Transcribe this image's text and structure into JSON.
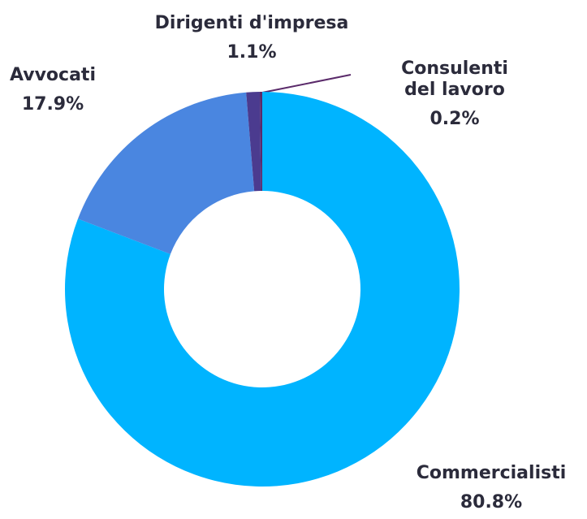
{
  "chart_data": {
    "type": "donut",
    "categories": [
      "Commercialisti",
      "Avvocati",
      "Dirigenti d'impresa",
      "Consulenti del lavoro"
    ],
    "values": [
      80.8,
      17.9,
      1.1,
      0.2
    ],
    "value_labels": [
      "80.8%",
      "17.9%",
      "1.1%",
      "0.2%"
    ],
    "colors": [
      "#00b4ff",
      "#4a86e0",
      "#4b3b8f",
      "#5a2a6a"
    ]
  }
}
